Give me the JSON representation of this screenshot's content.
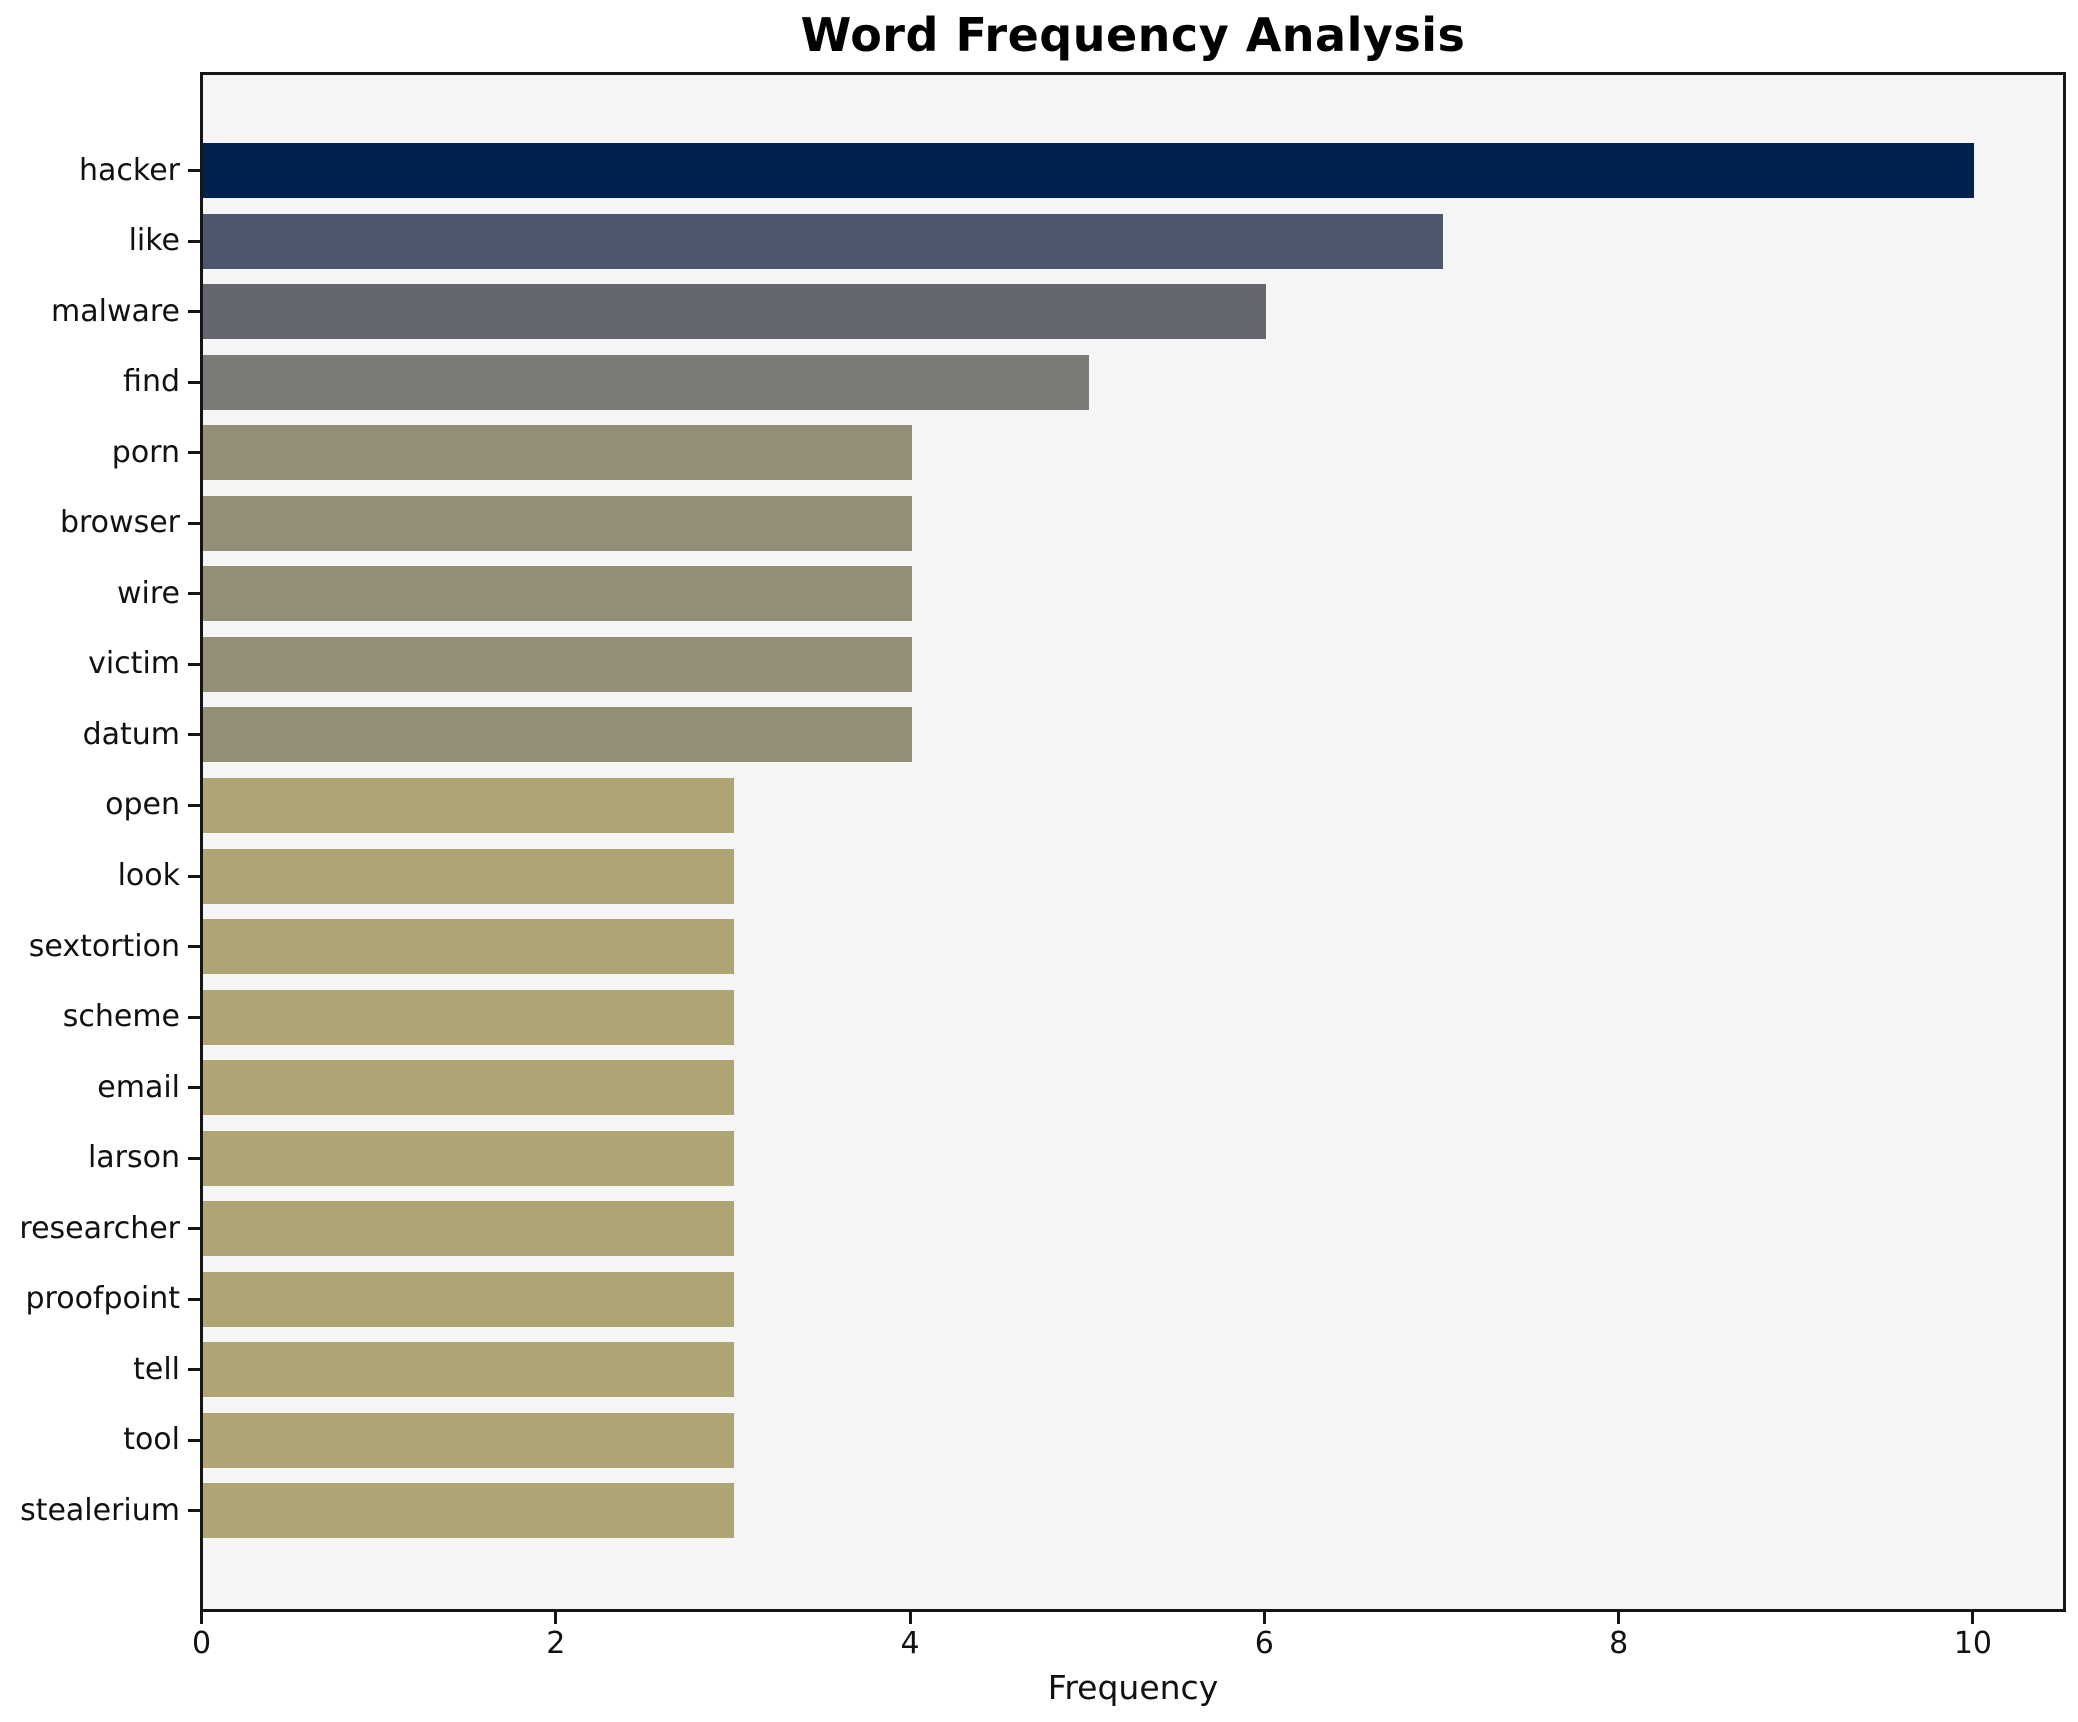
{
  "chart_data": {
    "type": "bar",
    "orientation": "horizontal",
    "title": "Word Frequency Analysis",
    "xlabel": "Frequency",
    "ylabel": "",
    "categories": [
      "hacker",
      "like",
      "malware",
      "find",
      "porn",
      "browser",
      "wire",
      "victim",
      "datum",
      "open",
      "look",
      "sextortion",
      "scheme",
      "email",
      "larson",
      "researcher",
      "proofpoint",
      "tell",
      "tool",
      "stealerium"
    ],
    "values": [
      10,
      7,
      6,
      5,
      4,
      4,
      4,
      4,
      4,
      3,
      3,
      3,
      3,
      3,
      3,
      3,
      3,
      3,
      3,
      3
    ],
    "bar_colors": [
      "#00234e",
      "#4d566c",
      "#63666f",
      "#7b7a74",
      "#949077",
      "#949077",
      "#949077",
      "#949077",
      "#949077",
      "#afa473",
      "#afa473",
      "#afa473",
      "#afa473",
      "#afa473",
      "#afa473",
      "#afa473",
      "#afa473",
      "#afa473",
      "#afa473",
      "#afa473"
    ],
    "xlim": [
      0,
      10.5
    ],
    "xticks": [
      0,
      2,
      4,
      6,
      8,
      10
    ],
    "grid": false,
    "legend": null,
    "plot_background": "#f5f5f6",
    "figure_background": "#ffffff",
    "spine_color": "#151515"
  }
}
